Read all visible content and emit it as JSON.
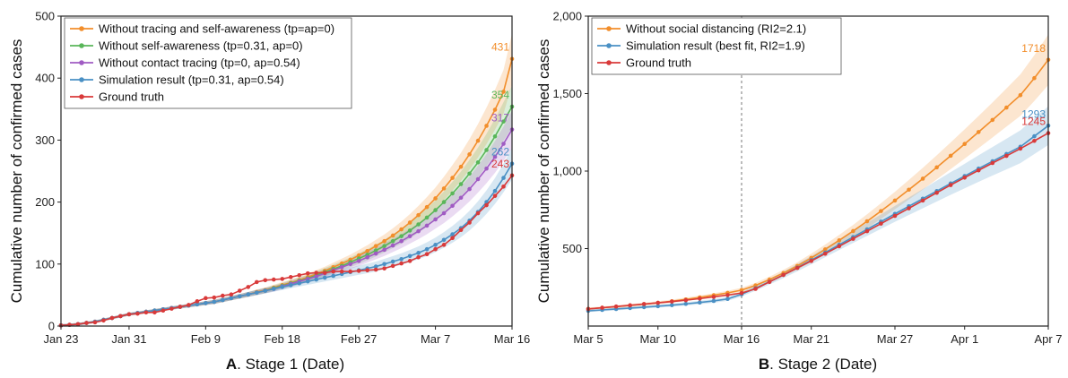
{
  "chart_data": [
    {
      "type": "line",
      "panel_letter": "A",
      "panel_title": ". Stage 1 (Date)",
      "ylabel": "Cumulative number of confirmed cases",
      "xlabel": "",
      "ylim": [
        0,
        500
      ],
      "yticks": [
        0,
        100,
        200,
        300,
        400,
        500
      ],
      "ytick_labels": [
        "0",
        "100",
        "200",
        "300",
        "400",
        "500"
      ],
      "x": [
        "Jan 23",
        "Jan 24",
        "Jan 25",
        "Jan 26",
        "Jan 27",
        "Jan 28",
        "Jan 29",
        "Jan 30",
        "Jan 31",
        "Feb 1",
        "Feb 2",
        "Feb 3",
        "Feb 4",
        "Feb 5",
        "Feb 6",
        "Feb 7",
        "Feb 8",
        "Feb 9",
        "Feb 10",
        "Feb 11",
        "Feb 12",
        "Feb 13",
        "Feb 14",
        "Feb 15",
        "Feb 16",
        "Feb 17",
        "Feb 18",
        "Feb 19",
        "Feb 20",
        "Feb 21",
        "Feb 22",
        "Feb 23",
        "Feb 24",
        "Feb 25",
        "Feb 26",
        "Feb 27",
        "Feb 28",
        "Feb 29",
        "Mar 1",
        "Mar 2",
        "Mar 3",
        "Mar 4",
        "Mar 5",
        "Mar 6",
        "Mar 7",
        "Mar 8",
        "Mar 9",
        "Mar 10",
        "Mar 11",
        "Mar 12",
        "Mar 13",
        "Mar 14",
        "Mar 15",
        "Mar 16"
      ],
      "xtick_labels": [
        "Jan 23",
        "Jan 31",
        "Feb 9",
        "Feb 18",
        "Feb 27",
        "Mar 7",
        "Mar 16"
      ],
      "grid": false,
      "legend": "top-left",
      "series": [
        {
          "name": "Without tracing and self-awareness (tp=ap=0)",
          "color": "#f28e2b",
          "band": true,
          "values": [
            1,
            2,
            3,
            5,
            7,
            10,
            13,
            16,
            19,
            21,
            23,
            25,
            27,
            29,
            31,
            33,
            35,
            37,
            39,
            42,
            45,
            48,
            51,
            55,
            58,
            62,
            66,
            70,
            74,
            79,
            84,
            89,
            95,
            101,
            107,
            114,
            121,
            129,
            137,
            146,
            156,
            167,
            179,
            192,
            206,
            222,
            239,
            257,
            277,
            299,
            323,
            349,
            378,
            431
          ],
          "end_label": "431"
        },
        {
          "name": "Without self-awareness (tp=0.31, ap=0)",
          "color": "#59b659",
          "band": true,
          "values": [
            1,
            2,
            3,
            5,
            7,
            10,
            13,
            16,
            19,
            21,
            23,
            25,
            27,
            29,
            31,
            33,
            35,
            37,
            39,
            42,
            45,
            48,
            51,
            54,
            57,
            61,
            65,
            69,
            73,
            77,
            82,
            87,
            92,
            97,
            103,
            109,
            115,
            122,
            129,
            137,
            145,
            154,
            164,
            175,
            187,
            200,
            214,
            229,
            246,
            264,
            284,
            306,
            330,
            354
          ],
          "end_label": "354"
        },
        {
          "name": "Without contact tracing (tp=0, ap=0.54)",
          "color": "#a05bc3",
          "band": true,
          "values": [
            1,
            2,
            3,
            5,
            7,
            10,
            13,
            16,
            19,
            21,
            23,
            25,
            27,
            29,
            31,
            33,
            35,
            37,
            39,
            42,
            45,
            48,
            51,
            54,
            57,
            60,
            64,
            68,
            72,
            76,
            80,
            85,
            90,
            95,
            100,
            105,
            111,
            117,
            123,
            130,
            137,
            145,
            153,
            162,
            172,
            182,
            194,
            207,
            221,
            237,
            254,
            273,
            294,
            317
          ],
          "end_label": "317"
        },
        {
          "name": "Simulation result (tp=0.31, ap=0.54)",
          "color": "#4a90c4",
          "band": true,
          "values": [
            1,
            2,
            3,
            5,
            7,
            10,
            13,
            16,
            19,
            21,
            23,
            25,
            27,
            29,
            31,
            33,
            35,
            37,
            39,
            42,
            45,
            48,
            51,
            54,
            57,
            60,
            63,
            66,
            69,
            72,
            75,
            78,
            81,
            84,
            87,
            90,
            93,
            96,
            100,
            104,
            108,
            113,
            118,
            124,
            131,
            139,
            148,
            158,
            170,
            184,
            200,
            218,
            239,
            262
          ],
          "end_label": "262"
        },
        {
          "name": "Ground truth",
          "color": "#d93a3a",
          "band": false,
          "values": [
            1,
            2,
            3,
            5,
            6,
            9,
            13,
            16,
            19,
            20,
            22,
            22,
            25,
            28,
            31,
            34,
            40,
            45,
            46,
            49,
            51,
            57,
            63,
            71,
            74,
            75,
            76,
            79,
            82,
            85,
            86,
            86,
            88,
            88,
            88,
            89,
            90,
            91,
            93,
            97,
            101,
            105,
            111,
            116,
            124,
            131,
            142,
            155,
            167,
            182,
            195,
            210,
            225,
            243
          ],
          "end_label": "243"
        }
      ]
    },
    {
      "type": "line",
      "panel_letter": "B",
      "panel_title": ". Stage 2 (Date)",
      "ylabel": "Cumulative number of confirmed cases",
      "xlabel": "",
      "ylim": [
        0,
        2000
      ],
      "yticks": [
        500,
        1000,
        1500,
        2000
      ],
      "ytick_labels": [
        "500",
        "1,000",
        "1,500",
        "2,000"
      ],
      "x": [
        "Mar 5",
        "Mar 6",
        "Mar 7",
        "Mar 8",
        "Mar 9",
        "Mar 10",
        "Mar 11",
        "Mar 12",
        "Mar 13",
        "Mar 14",
        "Mar 15",
        "Mar 16",
        "Mar 17",
        "Mar 18",
        "Mar 19",
        "Mar 20",
        "Mar 21",
        "Mar 22",
        "Mar 23",
        "Mar 24",
        "Mar 25",
        "Mar 26",
        "Mar 27",
        "Mar 28",
        "Mar 29",
        "Mar 30",
        "Mar 31",
        "Apr 1",
        "Apr 2",
        "Apr 3",
        "Apr 4",
        "Apr 5",
        "Apr 6",
        "Apr 7"
      ],
      "xtick_labels": [
        "Mar 5",
        "Mar 10",
        "Mar 16",
        "Mar 21",
        "Mar 27",
        "Apr 1",
        "Apr 7"
      ],
      "grid": false,
      "legend": "top-left",
      "vertical_marker": "Mar 16",
      "series": [
        {
          "name": "Without social distancing (RI2=2.1)",
          "color": "#f28e2b",
          "band": true,
          "values": [
            111,
            118,
            125,
            133,
            141,
            150,
            160,
            172,
            185,
            199,
            214,
            232,
            262,
            300,
            342,
            388,
            440,
            495,
            553,
            613,
            676,
            742,
            810,
            880,
            951,
            1024,
            1099,
            1175,
            1252,
            1330,
            1410,
            1490,
            1600,
            1718
          ],
          "end_label": "1718"
        },
        {
          "name": "Simulation result (best fit, RI2=1.9)",
          "color": "#4a90c4",
          "band": true,
          "values": [
            98,
            104,
            110,
            116,
            122,
            128,
            135,
            143,
            152,
            162,
            175,
            205,
            244,
            286,
            330,
            377,
            425,
            474,
            524,
            574,
            624,
            674,
            724,
            773,
            822,
            871,
            920,
            968,
            1016,
            1063,
            1110,
            1157,
            1225,
            1293
          ],
          "end_label": "1293"
        },
        {
          "name": "Ground truth",
          "color": "#d93a3a",
          "band": false,
          "values": [
            110,
            118,
            126,
            134,
            142,
            150,
            158,
            167,
            177,
            188,
            200,
            213,
            240,
            285,
            330,
            375,
            420,
            467,
            515,
            563,
            612,
            661,
            711,
            760,
            810,
            860,
            910,
            958,
            1005,
            1052,
            1098,
            1145,
            1195,
            1245
          ],
          "end_label": "1245"
        }
      ]
    }
  ]
}
